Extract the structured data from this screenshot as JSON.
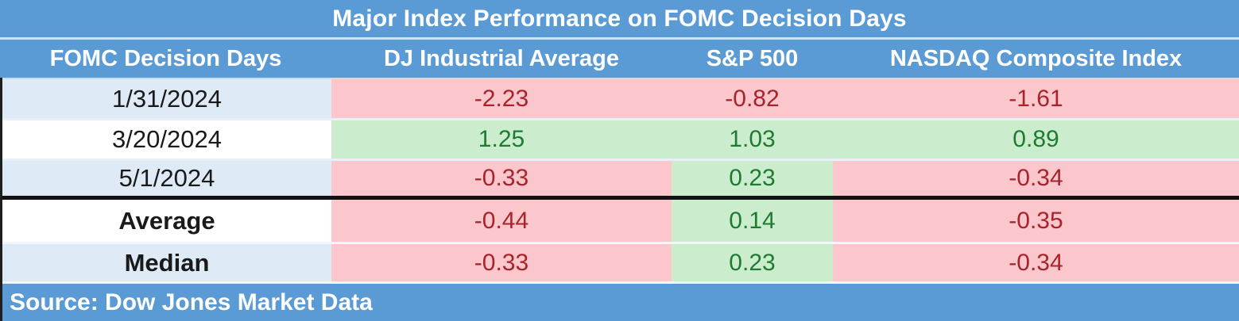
{
  "title": "Major Index Performance on FOMC Decision Days",
  "columns": [
    "FOMC Decision Days",
    "DJ Industrial Average",
    "S&P 500",
    "NASDAQ Composite Index"
  ],
  "rows": [
    {
      "label": "1/31/2024",
      "values": [
        {
          "text": "-2.23",
          "sentiment": "neg"
        },
        {
          "text": "-0.82",
          "sentiment": "neg"
        },
        {
          "text": "-1.61",
          "sentiment": "neg"
        }
      ]
    },
    {
      "label": "3/20/2024",
      "values": [
        {
          "text": "1.25",
          "sentiment": "pos"
        },
        {
          "text": "1.03",
          "sentiment": "pos"
        },
        {
          "text": "0.89",
          "sentiment": "pos"
        }
      ]
    },
    {
      "label": "5/1/2024",
      "values": [
        {
          "text": "-0.33",
          "sentiment": "neg"
        },
        {
          "text": "0.23",
          "sentiment": "pos"
        },
        {
          "text": "-0.34",
          "sentiment": "neg"
        }
      ]
    },
    {
      "label": "Average",
      "values": [
        {
          "text": "-0.44",
          "sentiment": "neg"
        },
        {
          "text": "0.14",
          "sentiment": "pos"
        },
        {
          "text": "-0.35",
          "sentiment": "neg"
        }
      ]
    },
    {
      "label": "Median",
      "values": [
        {
          "text": "-0.33",
          "sentiment": "neg"
        },
        {
          "text": "0.23",
          "sentiment": "pos"
        },
        {
          "text": "-0.34",
          "sentiment": "neg"
        }
      ]
    }
  ],
  "source": "Source: Dow Jones Market Data",
  "colors": {
    "header_blue": "#5B9BD5",
    "row_alt_blue": "#DEEAF6",
    "negative_bg": "#FBC7CD",
    "positive_bg": "#CBEDCE",
    "negative_text": "#A8232A",
    "positive_text": "#1E7B31",
    "divider_black": "#121212"
  },
  "chart_data": {
    "type": "table",
    "title": "Major Index Performance on FOMC Decision Days",
    "columns": [
      "FOMC Decision Days",
      "DJ Industrial Average",
      "S&P 500",
      "NASDAQ Composite Index"
    ],
    "rows": [
      [
        "1/31/2024",
        -2.23,
        -0.82,
        -1.61
      ],
      [
        "3/20/2024",
        1.25,
        1.03,
        0.89
      ],
      [
        "5/1/2024",
        -0.33,
        0.23,
        -0.34
      ],
      [
        "Average",
        -0.44,
        0.14,
        -0.35
      ],
      [
        "Median",
        -0.33,
        0.23,
        -0.34
      ]
    ],
    "source": "Source: Dow Jones Market Data",
    "value_semantics": "percent change on FOMC decision days; red cells negative, green cells positive"
  }
}
